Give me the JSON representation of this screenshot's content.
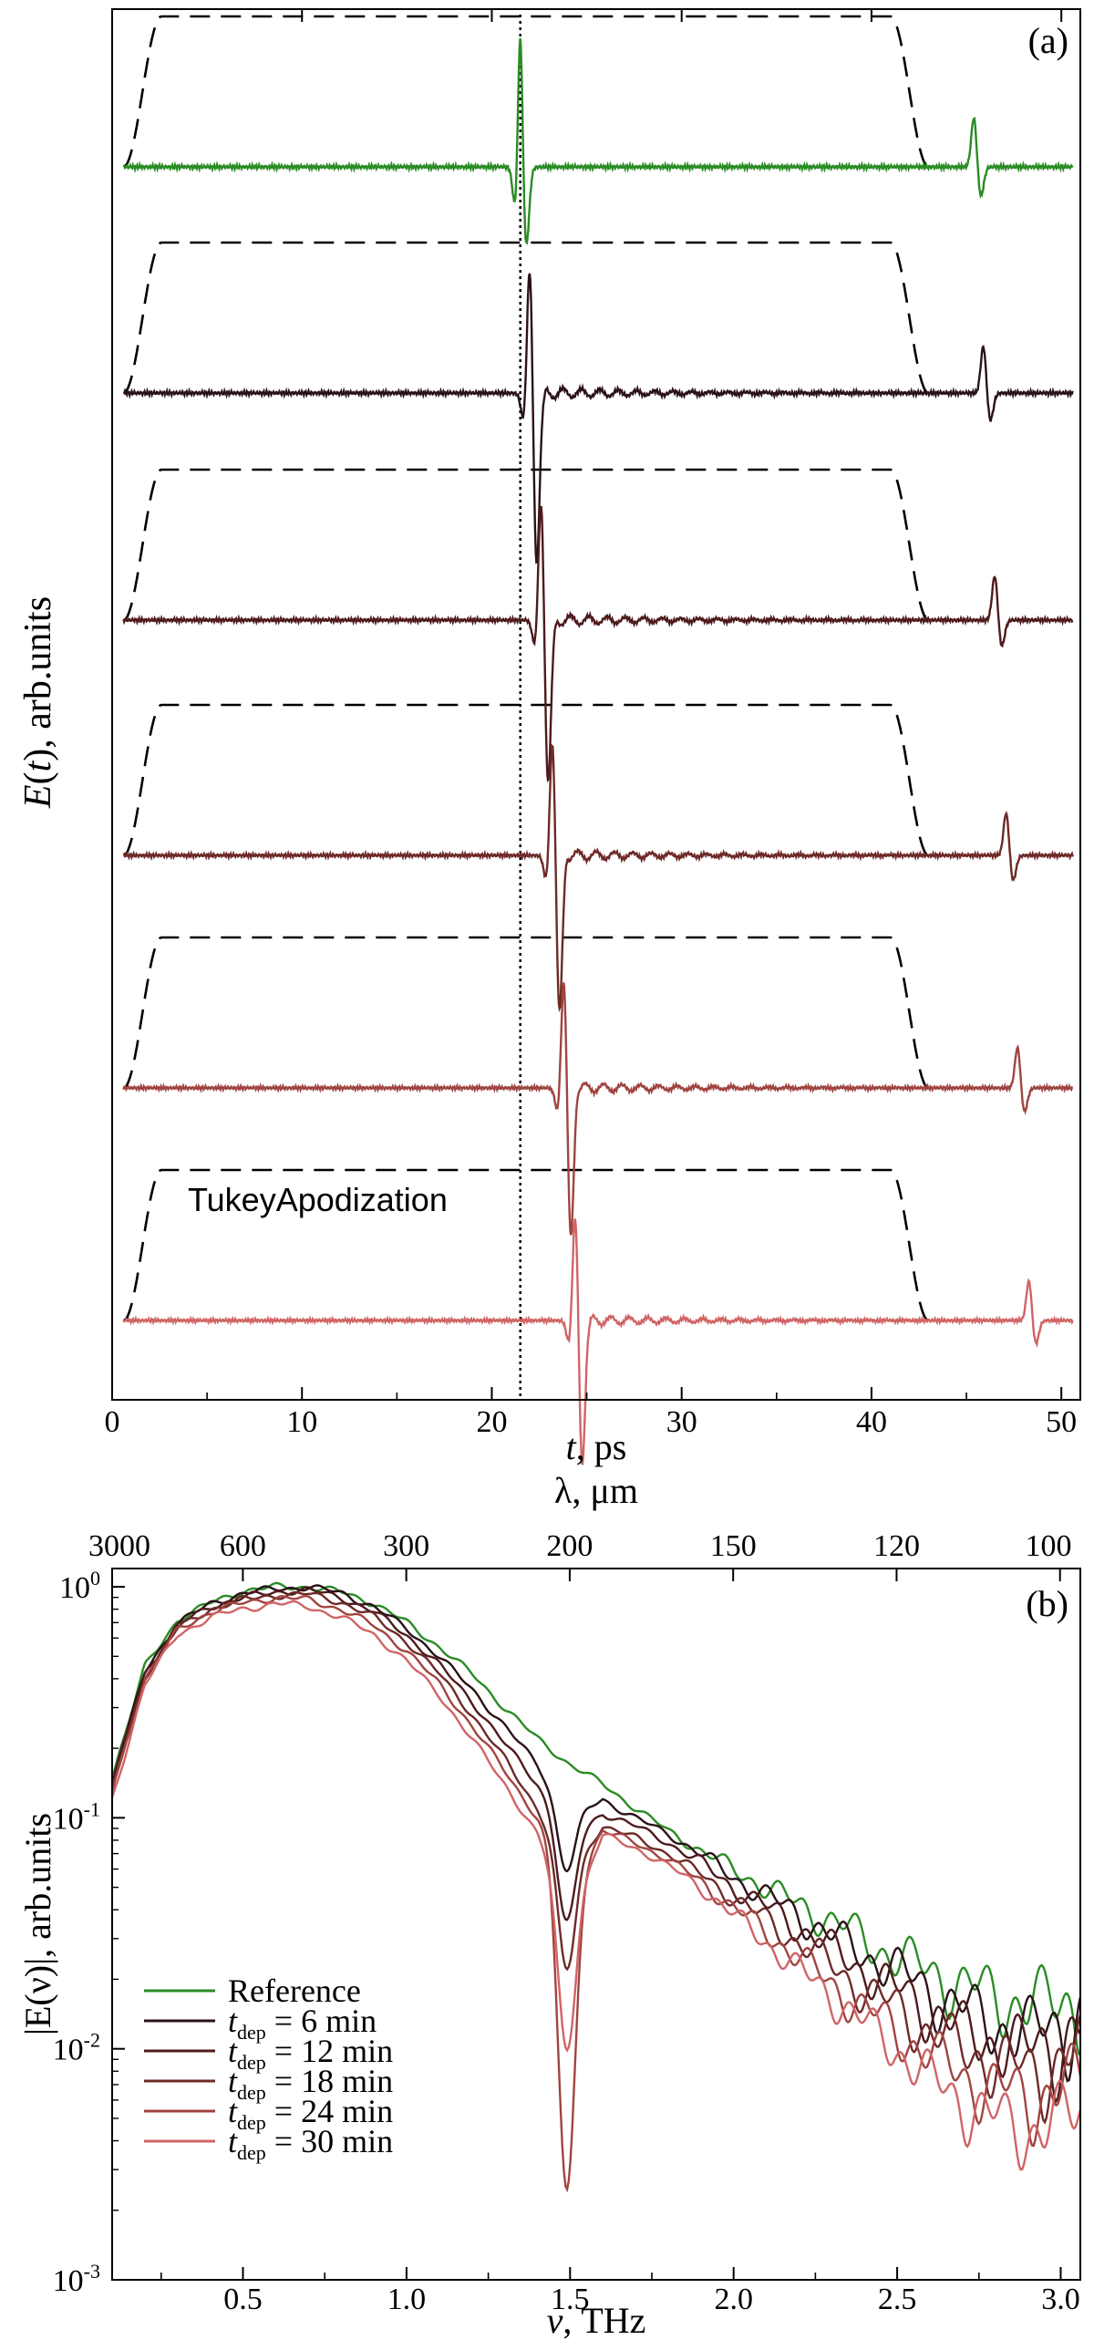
{
  "colors": {
    "reference": "#2a8c24",
    "t6": "#2a1218",
    "t12": "#4e1a1c",
    "t18": "#6e2a28",
    "t24": "#a0443f",
    "t30": "#d06466",
    "window": "#000000"
  },
  "chart_data": [
    {
      "panel_label": "(a)",
      "type": "line",
      "xlabel_italic": "t",
      "xlabel_unit": ", ps",
      "ylabel_italic": "E",
      "ylabel_arg": "(t)",
      "ylabel_unit": ", arb.units",
      "xlim": [
        0,
        51
      ],
      "xticks": [
        0,
        10,
        20,
        30,
        40,
        50
      ],
      "xtick_labels": [
        "0",
        "10",
        "20",
        "30",
        "40",
        "50"
      ],
      "reference_line_t": 21.5,
      "annotation": "TukeyApodization",
      "window": {
        "rise_start": 0.6,
        "rise_end": 2.6,
        "fall_start": 41.0,
        "fall_end": 43.0,
        "style": "dashed"
      },
      "traces": [
        {
          "color_key": "reference",
          "pulse_t": 21.5,
          "echo_t": 45.4,
          "amplitude": 1.0
        },
        {
          "color_key": "t6",
          "pulse_t": 22.0,
          "echo_t": 45.9,
          "amplitude": 0.95
        },
        {
          "color_key": "t12",
          "pulse_t": 22.6,
          "echo_t": 46.5,
          "amplitude": 0.9
        },
        {
          "color_key": "t18",
          "pulse_t": 23.2,
          "echo_t": 47.1,
          "amplitude": 0.86
        },
        {
          "color_key": "t24",
          "pulse_t": 23.8,
          "echo_t": 47.7,
          "amplitude": 0.82
        },
        {
          "color_key": "t30",
          "pulse_t": 24.4,
          "echo_t": 48.3,
          "amplitude": 0.8
        }
      ]
    },
    {
      "panel_label": "(b)",
      "type": "line",
      "log_y": true,
      "xlabel_italic": "ν",
      "xlabel_unit": ", THz",
      "ylabel": "|E(ν)|, arb.units",
      "top_axis_label": "λ, μm",
      "xlim": [
        0.1,
        3.06
      ],
      "ylim": [
        0.001,
        1.2
      ],
      "xticks": [
        0.5,
        1.0,
        1.5,
        2.0,
        2.5,
        3.0
      ],
      "xtick_labels": [
        "0.5",
        "1.0",
        "1.5",
        "2.0",
        "2.5",
        "3.0"
      ],
      "top_ticks_um": [
        3000,
        600,
        300,
        200,
        150,
        120,
        100
      ],
      "top_tick_labels": [
        "3000",
        "600",
        "300",
        "200",
        "150",
        "120",
        "100"
      ],
      "yticks": [
        0.001,
        0.01,
        0.1,
        1
      ],
      "ytick_base": "10",
      "ytick_exponents": [
        "-3",
        "-2",
        "-1",
        "0"
      ],
      "legend_placement": "bottom-left",
      "series": [
        {
          "name": "Reference",
          "color_key": "reference",
          "dip_at": null,
          "dip_min": null,
          "x": [
            0.1,
            0.2,
            0.3,
            0.4,
            0.5,
            0.6,
            0.7,
            0.8,
            0.9,
            1.0,
            1.1,
            1.2,
            1.3,
            1.4,
            1.5,
            1.6,
            1.7,
            1.8,
            1.9,
            2.0,
            2.1,
            2.2,
            2.3,
            2.4,
            2.5,
            2.6,
            2.7,
            2.8,
            2.9,
            3.0,
            3.06
          ],
          "y": [
            0.15,
            0.45,
            0.72,
            0.85,
            0.96,
            1.0,
            1.0,
            0.95,
            0.85,
            0.7,
            0.55,
            0.42,
            0.3,
            0.22,
            0.17,
            0.14,
            0.11,
            0.088,
            0.072,
            0.06,
            0.05,
            0.042,
            0.036,
            0.03,
            0.025,
            0.022,
            0.019,
            0.017,
            0.016,
            0.016,
            0.017
          ]
        },
        {
          "name_italic": "t",
          "name_sub": "dep",
          "name_value": " = 6 min",
          "color_key": "t6",
          "dip_at": 1.49,
          "dip_min": 0.06,
          "x": [
            0.1,
            0.2,
            0.3,
            0.4,
            0.5,
            0.6,
            0.7,
            0.8,
            0.9,
            1.0,
            1.1,
            1.2,
            1.3,
            1.4,
            1.5,
            1.6,
            1.7,
            1.8,
            1.9,
            2.0,
            2.1,
            2.2,
            2.3,
            2.4,
            2.5,
            2.6,
            2.7,
            2.8,
            2.9,
            3.0,
            3.06
          ],
          "y": [
            0.14,
            0.43,
            0.7,
            0.84,
            0.94,
            0.98,
            1.0,
            0.94,
            0.82,
            0.66,
            0.5,
            0.36,
            0.25,
            0.17,
            0.1,
            0.12,
            0.1,
            0.085,
            0.07,
            0.055,
            0.046,
            0.038,
            0.031,
            0.026,
            0.022,
            0.018,
            0.015,
            0.013,
            0.012,
            0.013,
            0.014
          ]
        },
        {
          "name_italic": "t",
          "name_sub": "dep",
          "name_value": " = 12 min",
          "color_key": "t12",
          "dip_at": 1.49,
          "dip_min": 0.035,
          "x": [
            0.1,
            0.2,
            0.3,
            0.4,
            0.5,
            0.6,
            0.7,
            0.8,
            0.9,
            1.0,
            1.1,
            1.2,
            1.3,
            1.4,
            1.5,
            1.6,
            1.7,
            1.8,
            1.9,
            2.0,
            2.1,
            2.2,
            2.3,
            2.4,
            2.5,
            2.6,
            2.7,
            2.8,
            2.9,
            3.0,
            3.06
          ],
          "y": [
            0.14,
            0.42,
            0.68,
            0.82,
            0.9,
            0.95,
            0.97,
            0.9,
            0.78,
            0.62,
            0.46,
            0.32,
            0.21,
            0.14,
            0.08,
            0.105,
            0.092,
            0.078,
            0.064,
            0.05,
            0.041,
            0.034,
            0.027,
            0.022,
            0.018,
            0.015,
            0.012,
            0.011,
            0.01,
            0.011,
            0.012
          ]
        },
        {
          "name_italic": "t",
          "name_sub": "dep",
          "name_value": " = 18 min",
          "color_key": "t18",
          "dip_at": 1.49,
          "dip_min": 0.022,
          "x": [
            0.1,
            0.2,
            0.3,
            0.4,
            0.5,
            0.6,
            0.7,
            0.8,
            0.9,
            1.0,
            1.1,
            1.2,
            1.3,
            1.4,
            1.5,
            1.6,
            1.7,
            1.8,
            1.9,
            2.0,
            2.1,
            2.2,
            2.3,
            2.4,
            2.5,
            2.6,
            2.7,
            2.8,
            2.9,
            3.0,
            3.06
          ],
          "y": [
            0.13,
            0.41,
            0.66,
            0.8,
            0.88,
            0.92,
            0.93,
            0.86,
            0.74,
            0.58,
            0.42,
            0.28,
            0.18,
            0.11,
            0.06,
            0.092,
            0.082,
            0.07,
            0.057,
            0.045,
            0.036,
            0.029,
            0.023,
            0.018,
            0.015,
            0.012,
            0.01,
            0.009,
            0.008,
            0.009,
            0.01
          ]
        },
        {
          "name_italic": "t",
          "name_sub": "dep",
          "name_value": " = 24 min",
          "color_key": "t24",
          "dip_at": 1.49,
          "dip_min": 0.0024,
          "x": [
            0.1,
            0.2,
            0.3,
            0.4,
            0.5,
            0.6,
            0.7,
            0.8,
            0.9,
            1.0,
            1.1,
            1.2,
            1.3,
            1.4,
            1.5,
            1.6,
            1.7,
            1.8,
            1.9,
            2.0,
            2.1,
            2.2,
            2.3,
            2.4,
            2.5,
            2.6,
            2.7,
            2.8,
            2.9,
            3.0,
            3.06
          ],
          "y": [
            0.13,
            0.4,
            0.65,
            0.78,
            0.85,
            0.9,
            0.88,
            0.8,
            0.68,
            0.53,
            0.38,
            0.25,
            0.16,
            0.1,
            0.05,
            0.088,
            0.078,
            0.066,
            0.053,
            0.041,
            0.032,
            0.025,
            0.019,
            0.015,
            0.012,
            0.0095,
            0.0078,
            0.0068,
            0.0062,
            0.0068,
            0.0075
          ]
        },
        {
          "name_italic": "t",
          "name_sub": "dep",
          "name_value": " = 30 min",
          "color_key": "t30",
          "dip_at": 1.49,
          "dip_min": 0.01,
          "x": [
            0.1,
            0.2,
            0.3,
            0.4,
            0.5,
            0.6,
            0.7,
            0.8,
            0.9,
            1.0,
            1.1,
            1.2,
            1.3,
            1.4,
            1.5,
            1.6,
            1.7,
            1.8,
            1.9,
            2.0,
            2.1,
            2.2,
            2.3,
            2.4,
            2.5,
            2.6,
            2.7,
            2.8,
            2.9,
            3.0,
            3.06
          ],
          "y": [
            0.12,
            0.38,
            0.62,
            0.74,
            0.8,
            0.85,
            0.82,
            0.74,
            0.62,
            0.48,
            0.34,
            0.22,
            0.14,
            0.085,
            0.04,
            0.084,
            0.074,
            0.062,
            0.05,
            0.038,
            0.029,
            0.022,
            0.017,
            0.013,
            0.01,
            0.0075,
            0.006,
            0.005,
            0.0045,
            0.005,
            0.0055
          ]
        }
      ]
    }
  ]
}
